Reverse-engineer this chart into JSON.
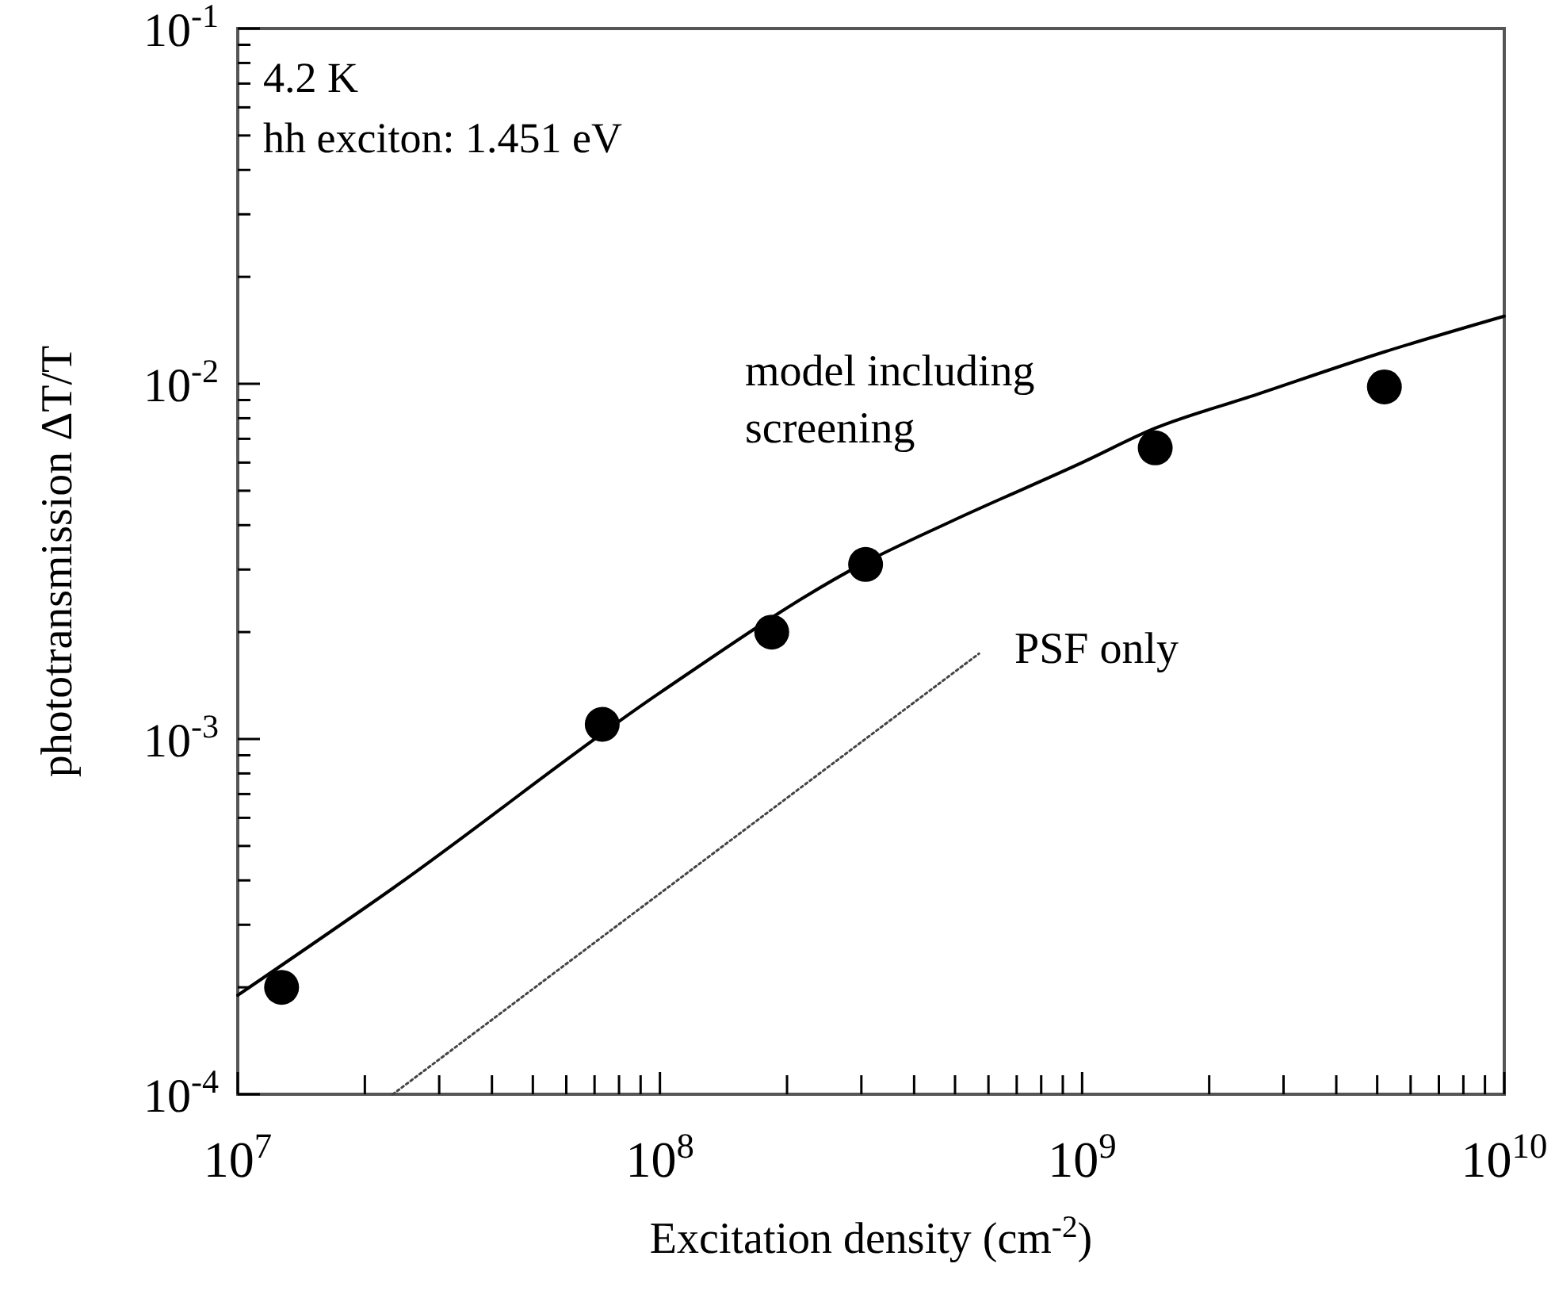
{
  "chart_data": {
    "type": "scatter",
    "xlabel": "Excitation density (cm$^{-2}$)",
    "ylabel": "phototransmission ΔT/T",
    "log": "xy",
    "grid": false,
    "marker": "circle",
    "xlim": [
      10000000.0,
      10000000000.0
    ],
    "ylim": [
      0.0001,
      0.1
    ],
    "xticks": [
      {
        "value": 10000000.0,
        "label": "10$^{7}$"
      },
      {
        "value": 20000000.0,
        "label": null
      },
      {
        "value": 30000000.0,
        "label": null
      },
      {
        "value": 40000000.0,
        "label": null
      },
      {
        "value": 50000000.0,
        "label": null
      },
      {
        "value": 60000000.0,
        "label": null
      },
      {
        "value": 70000000.0,
        "label": null
      },
      {
        "value": 80000000.0,
        "label": null
      },
      {
        "value": 90000000.0,
        "label": null
      },
      {
        "value": 100000000.0,
        "label": "10$^{8}$"
      },
      {
        "value": 200000000.0,
        "label": null
      },
      {
        "value": 300000000.0,
        "label": null
      },
      {
        "value": 400000000.0,
        "label": null
      },
      {
        "value": 500000000.0,
        "label": null
      },
      {
        "value": 600000000.0,
        "label": null
      },
      {
        "value": 700000000.0,
        "label": null
      },
      {
        "value": 800000000.0,
        "label": null
      },
      {
        "value": 900000000.0,
        "label": null
      },
      {
        "value": 1000000000.0,
        "label": "10$^{9}$"
      },
      {
        "value": 2000000000.0,
        "label": null
      },
      {
        "value": 3000000000.0,
        "label": null
      },
      {
        "value": 4000000000.0,
        "label": null
      },
      {
        "value": 5000000000.0,
        "label": null
      },
      {
        "value": 6000000000.0,
        "label": null
      },
      {
        "value": 7000000000.0,
        "label": null
      },
      {
        "value": 8000000000.0,
        "label": null
      },
      {
        "value": 9000000000.0,
        "label": null
      },
      {
        "value": 10000000000.0,
        "label": "10$^{10}$"
      }
    ],
    "yticks": [
      {
        "value": 0.0001,
        "label": "10$^{-4}$"
      },
      {
        "value": 0.0002,
        "label": null
      },
      {
        "value": 0.0003,
        "label": null
      },
      {
        "value": 0.0004,
        "label": null
      },
      {
        "value": 0.0005,
        "label": null
      },
      {
        "value": 0.0006,
        "label": null
      },
      {
        "value": 0.0007,
        "label": null
      },
      {
        "value": 0.0008,
        "label": null
      },
      {
        "value": 0.0009,
        "label": null
      },
      {
        "value": 0.001,
        "label": "10$^{-3}$"
      },
      {
        "value": 0.002,
        "label": null
      },
      {
        "value": 0.003,
        "label": null
      },
      {
        "value": 0.004,
        "label": null
      },
      {
        "value": 0.005,
        "label": null
      },
      {
        "value": 0.006,
        "label": null
      },
      {
        "value": 0.007,
        "label": null
      },
      {
        "value": 0.008,
        "label": null
      },
      {
        "value": 0.009,
        "label": null
      },
      {
        "value": 0.01,
        "label": "10$^{-2}$"
      },
      {
        "value": 0.02,
        "label": null
      },
      {
        "value": 0.03,
        "label": null
      },
      {
        "value": 0.04,
        "label": null
      },
      {
        "value": 0.05,
        "label": null
      },
      {
        "value": 0.06,
        "label": null
      },
      {
        "value": 0.07,
        "label": null
      },
      {
        "value": 0.08,
        "label": null
      },
      {
        "value": 0.09,
        "label": null
      },
      {
        "value": 0.1,
        "label": "10$^{-1}$"
      }
    ],
    "annotations": [
      "4.2 K",
      "hh exciton: 1.451 eV"
    ],
    "series": [
      {
        "type": "line",
        "name": "model including screening",
        "color": "#000000",
        "line_style": "solid",
        "marker": "none",
        "x": [
          10000000.0,
          23300000.0,
          100000000.0,
          300000000.0,
          490000000.0,
          1000000000.0,
          1490000000.0,
          2500000000.0,
          5200000000.0,
          10000000000.0
        ],
        "values": [
          0.00019,
          0.00038,
          0.00135,
          0.0031,
          0.0041,
          0.006,
          0.0075,
          0.0092,
          0.0123,
          0.0155
        ]
      },
      {
        "type": "line",
        "name": "PSF only",
        "color": "#444444",
        "line_style": "dotted",
        "marker": "none",
        "x": [
          23300000.0,
          570000000.0
        ],
        "values": [
          0.0001,
          0.00174
        ]
      },
      {
        "color": "#000000",
        "x": [
          12700000.0,
          73000000.0,
          184000000.0,
          307000000.0,
          1490000000.0,
          5200000000.0
        ],
        "values": [
          0.0002,
          0.0011,
          0.002,
          0.0031,
          0.0066,
          0.0098
        ]
      }
    ]
  }
}
